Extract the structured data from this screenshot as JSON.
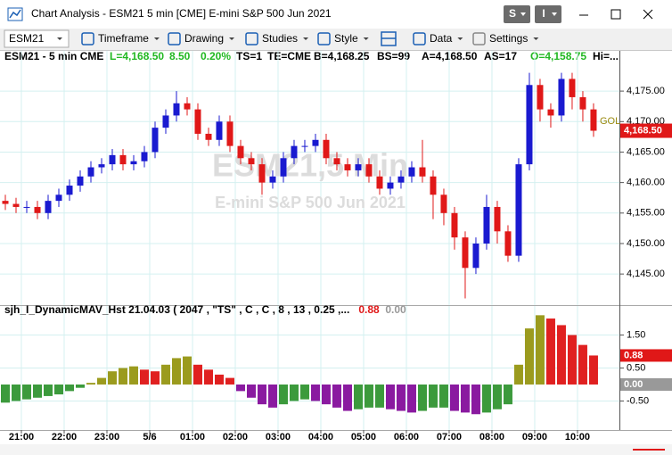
{
  "window": {
    "title": "Chart Analysis - ESM21 5 min [CME] E-mini S&P 500 Jun 2021",
    "buttons": [
      "S",
      "I"
    ]
  },
  "toolbar": {
    "symbol": "ESM21",
    "items": [
      "Timeframe",
      "Drawing",
      "Studies",
      "Style",
      "Data",
      "Settings"
    ]
  },
  "info_bar": [
    {
      "text": "ESM21 - 5 min  CME",
      "color": "#000000"
    },
    {
      "text": "L=4,168.50",
      "color": "#22b822"
    },
    {
      "text": "8.50",
      "color": "#22b822"
    },
    {
      "text": "0.20%",
      "color": "#22b822"
    },
    {
      "text": "TS=1",
      "color": "#000000"
    },
    {
      "text": "TE=CME",
      "color": "#000000"
    },
    {
      "text": "B=4,168.25",
      "color": "#000000"
    },
    {
      "text": "BS=99",
      "color": "#000000"
    },
    {
      "text": "A=4,168.50",
      "color": "#000000"
    },
    {
      "text": "AS=17",
      "color": "#000000"
    },
    {
      "text": "O=4,158.75",
      "color": "#22b822"
    },
    {
      "text": "Hi=...",
      "color": "#000000"
    }
  ],
  "chart_data": [
    {
      "type": "candlestick",
      "watermark": [
        "ESM21,5 Min",
        "E-mini S&P 500 Jun 2021"
      ],
      "x": [
        -0.375,
        -0.125,
        0.125,
        0.375,
        0.625,
        0.875,
        1.125,
        1.375,
        1.625,
        1.875,
        2.125,
        2.375,
        2.625,
        2.875,
        3.125,
        3.375,
        3.625,
        3.875,
        4.125,
        4.375,
        4.625,
        4.875,
        5.125,
        5.375,
        5.625,
        5.875,
        6.125,
        6.375,
        6.625,
        6.875,
        7.125,
        7.375,
        7.625,
        7.875,
        8.125,
        8.375,
        8.625,
        8.875,
        9.125,
        9.375,
        9.625,
        9.875,
        10.125,
        10.375,
        10.625,
        10.875,
        11.125,
        11.375,
        11.625,
        11.875,
        12.125,
        12.375,
        12.625,
        12.875,
        13.125,
        13.375
      ],
      "open": [
        4157,
        4156.5,
        4156,
        4156,
        4155,
        4157,
        4158,
        4159.5,
        4161,
        4162.5,
        4163,
        4164.5,
        4163,
        4163.5,
        4165,
        4169,
        4171,
        4173,
        4172,
        4168,
        4167,
        4170,
        4166,
        4164,
        4163,
        4160,
        4161,
        4164,
        4166,
        4166,
        4167,
        4164,
        4163,
        4162,
        4163,
        4161,
        4159,
        4160,
        4161,
        4162.5,
        4161,
        4158,
        4155,
        4151,
        4146,
        4150,
        4156,
        4152,
        4148,
        4163,
        4176,
        4172,
        4171,
        4177,
        4174,
        4172
      ],
      "high": [
        4158,
        4157.5,
        4157,
        4157,
        4158,
        4159,
        4160.5,
        4162,
        4163.5,
        4164,
        4165.5,
        4165.5,
        4164.5,
        4166,
        4170,
        4172,
        4175,
        4174,
        4173,
        4169,
        4171,
        4171,
        4167,
        4165,
        4164,
        4162,
        4165,
        4167,
        4167,
        4168,
        4168,
        4165,
        4164,
        4164,
        4164,
        4162,
        4161,
        4162,
        4163.5,
        4167,
        4162,
        4159,
        4156,
        4152,
        4151,
        4158,
        4157,
        4153,
        4164,
        4178,
        4177,
        4173,
        4178,
        4178,
        4175,
        4173
      ],
      "low": [
        4155.5,
        4155,
        4155,
        4154,
        4154,
        4156,
        4157,
        4158.5,
        4160,
        4161.5,
        4162,
        4162,
        4162,
        4162.5,
        4164,
        4168,
        4170,
        4171,
        4167,
        4166,
        4166,
        4165,
        4163,
        4162,
        4158,
        4159,
        4160,
        4163,
        4165,
        4165,
        4163,
        4162,
        4161,
        4161,
        4160,
        4158,
        4158,
        4159,
        4160,
        4160,
        4154,
        4153,
        4149,
        4141,
        4145,
        4149,
        4150,
        4147,
        4147,
        4162,
        4170,
        4169,
        4170,
        4172,
        4170,
        4167.5
      ],
      "close": [
        4156.5,
        4156,
        4156,
        4155,
        4157,
        4158,
        4159.5,
        4161,
        4162.5,
        4163,
        4164.5,
        4163,
        4163.5,
        4165,
        4169,
        4171,
        4173,
        4172,
        4168,
        4167,
        4170,
        4166,
        4164,
        4163,
        4160,
        4161,
        4164,
        4166,
        4166,
        4167,
        4164,
        4163,
        4162,
        4163,
        4161,
        4159,
        4160,
        4161,
        4162.5,
        4161,
        4158,
        4155,
        4151,
        4146,
        4150,
        4156,
        4152,
        4148,
        4163,
        4176,
        4172,
        4171,
        4177,
        4174,
        4172,
        4168.5
      ],
      "up_color": "#1a1ad0",
      "down_color": "#e01818",
      "xlim": [
        -0.5,
        13.98
      ],
      "ylim": [
        4139.9,
        4181.6
      ],
      "yticks": [
        {
          "value": 4145,
          "label": "4,145.00"
        },
        {
          "value": 4150,
          "label": "4,150.00"
        },
        {
          "value": 4155,
          "label": "4,155.00"
        },
        {
          "value": 4160,
          "label": "4,160.00"
        },
        {
          "value": 4165,
          "label": "4,165.00"
        },
        {
          "value": 4170,
          "label": "4,170.00"
        },
        {
          "value": 4175,
          "label": "4,175.00"
        }
      ],
      "grid": true,
      "last_price": {
        "value": 4168.5,
        "label": "4,168.50",
        "color": "#e01818"
      },
      "side_label": {
        "text": "GOL",
        "value": 4170,
        "color": "#9a8a10"
      }
    },
    {
      "type": "bar",
      "title": "sjh_I_DynamicMAV_Hst 21.04.03 ( 2047 , \"TS\" , C , C ,  8 , 13 , 0.25 ,...",
      "readouts": [
        {
          "value": 0.88,
          "label": "0.88",
          "color": "#e01818"
        },
        {
          "value": 0,
          "label": "0.00",
          "color": "#999999"
        }
      ],
      "x": [
        -0.375,
        -0.125,
        0.125,
        0.375,
        0.625,
        0.875,
        1.125,
        1.375,
        1.625,
        1.875,
        2.125,
        2.375,
        2.625,
        2.875,
        3.125,
        3.375,
        3.625,
        3.875,
        4.125,
        4.375,
        4.625,
        4.875,
        5.125,
        5.375,
        5.625,
        5.875,
        6.125,
        6.375,
        6.625,
        6.875,
        7.125,
        7.375,
        7.625,
        7.875,
        8.125,
        8.375,
        8.625,
        8.875,
        9.125,
        9.375,
        9.625,
        9.875,
        10.125,
        10.375,
        10.625,
        10.875,
        11.125,
        11.375,
        11.625,
        11.875,
        12.125,
        12.375,
        12.625,
        12.875,
        13.125,
        13.375
      ],
      "values": [
        -0.55,
        -0.5,
        -0.45,
        -0.4,
        -0.35,
        -0.3,
        -0.2,
        -0.1,
        0.05,
        0.2,
        0.4,
        0.5,
        0.55,
        0.45,
        0.4,
        0.6,
        0.8,
        0.85,
        0.6,
        0.45,
        0.3,
        0.2,
        -0.2,
        -0.4,
        -0.6,
        -0.7,
        -0.6,
        -0.5,
        -0.45,
        -0.5,
        -0.6,
        -0.7,
        -0.8,
        -0.75,
        -0.7,
        -0.7,
        -0.75,
        -0.8,
        -0.85,
        -0.8,
        -0.7,
        -0.7,
        -0.8,
        -0.85,
        -0.9,
        -0.85,
        -0.75,
        -0.6,
        0.6,
        1.7,
        2.1,
        2.0,
        1.8,
        1.5,
        1.2,
        0.88
      ],
      "colors": {
        "positive_rising": "#9b9b1e",
        "positive_falling": "#e02020",
        "negative_rising": "#3c9a3c",
        "negative_falling": "#8a1aa0"
      },
      "xlim": [
        -0.5,
        13.98
      ],
      "ylim": [
        -1.38,
        2.38
      ],
      "yticks": [
        {
          "value": -0.5,
          "label": "-0.50"
        },
        {
          "value": 0.5,
          "label": "0.50"
        },
        {
          "value": 1.5,
          "label": "1.50"
        }
      ],
      "xticks": [
        {
          "value": 0,
          "label": "21:00"
        },
        {
          "value": 1,
          "label": "22:00"
        },
        {
          "value": 2,
          "label": "23:00"
        },
        {
          "value": 3,
          "label": "5/6"
        },
        {
          "value": 4,
          "label": "01:00"
        },
        {
          "value": 5,
          "label": "02:00"
        },
        {
          "value": 6,
          "label": "03:00"
        },
        {
          "value": 7,
          "label": "04:00"
        },
        {
          "value": 8,
          "label": "05:00"
        },
        {
          "value": 9,
          "label": "06:00"
        },
        {
          "value": 10,
          "label": "07:00"
        },
        {
          "value": 11,
          "label": "08:00"
        },
        {
          "value": 12,
          "label": "09:00"
        },
        {
          "value": 13,
          "label": "10:00"
        }
      ],
      "grid": true
    }
  ]
}
